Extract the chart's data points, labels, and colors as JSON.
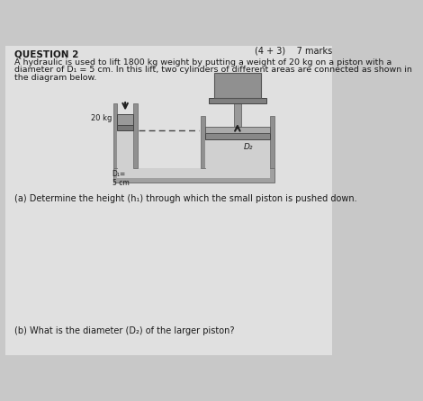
{
  "bg_color": "#c8c8c8",
  "paper_color": "#e0e0e0",
  "title_line": "(4 + 3)    7 marks",
  "question_label": "QUESTION 2",
  "question_text_1": "A hydraulic is used to lift 1800 kg weight by putting a weight of 20 kg on a piston with a",
  "question_text_2": "diameter of D₁ = 5 cm. In this lift, two cylinders of different areas are connected as shown in",
  "question_text_3": "the diagram below.",
  "part_a": "(a) Determine the height (h₁) through which the small piston is pushed down.",
  "part_b": "(b) What is the diameter (D₂) of the larger piston?",
  "label_20kg": "20 kg",
  "label_D1": "D₁=\n5 cm",
  "label_D2": "D₂",
  "text_color": "#1a1a1a",
  "wall_color": "#909090",
  "wall_dark": "#707070",
  "fluid_color": "#d0d0d0",
  "piston_color": "#888888",
  "load_block_color": "#909090",
  "platform_color": "#808080",
  "ground_color": "#a0a0a0"
}
